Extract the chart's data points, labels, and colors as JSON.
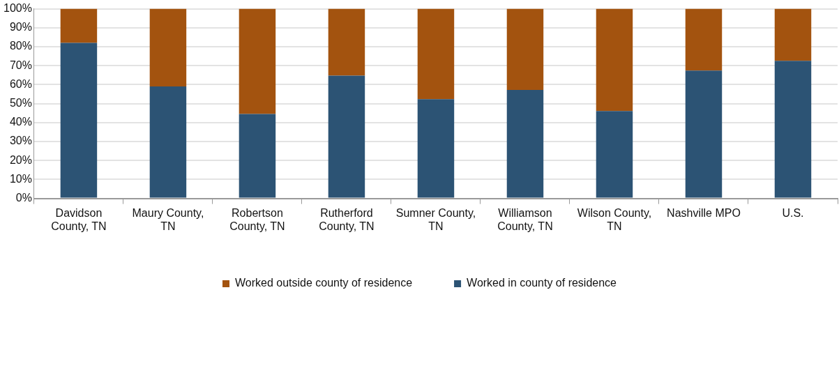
{
  "chart_data": {
    "type": "bar",
    "stacked": true,
    "categories": [
      "Davidson County, TN",
      "Maury County, TN",
      "Robertson County, TN",
      "Rutherford County, TN",
      "Sumner County, TN",
      "Williamson County, TN",
      "Wilson County, TN",
      "Nashville MPO",
      "U.S."
    ],
    "series": [
      {
        "name": "Worked in county of residence",
        "color": "#2c5374",
        "values": [
          82,
          59,
          44.5,
          64.7,
          52.3,
          57.2,
          46.1,
          67.4,
          72.6
        ]
      },
      {
        "name": "Worked outside county of residence",
        "color": "#a3530f",
        "values": [
          18,
          41,
          55.5,
          35.3,
          47.7,
          42.8,
          53.9,
          32.6,
          27.4
        ]
      }
    ],
    "ylim": [
      0,
      100
    ],
    "yticks": [
      {
        "value": 0,
        "label": "0%"
      },
      {
        "value": 10,
        "label": "10%"
      },
      {
        "value": 20,
        "label": "20%"
      },
      {
        "value": 30,
        "label": "30%"
      },
      {
        "value": 40,
        "label": "40%"
      },
      {
        "value": 50,
        "label": "50%"
      },
      {
        "value": 60,
        "label": "60%"
      },
      {
        "value": 70,
        "label": "70%"
      },
      {
        "value": 80,
        "label": "80%"
      },
      {
        "value": 90,
        "label": "90%"
      },
      {
        "value": 100,
        "label": "100%"
      }
    ],
    "grid": "y",
    "legend": "bottom"
  }
}
